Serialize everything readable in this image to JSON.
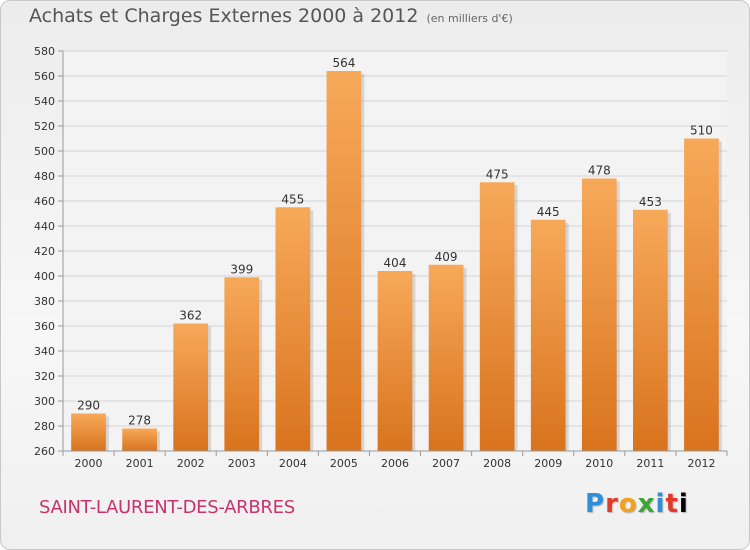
{
  "header": {
    "title": "Achats et Charges Externes 2000 à 2012",
    "unit": "(en milliers d'€)"
  },
  "footer": {
    "commune": "SAINT-LAURENT-DES-ARBRES",
    "logo_letters": [
      "P",
      "r",
      "o",
      "x",
      "i",
      "t",
      "i"
    ]
  },
  "colors": {
    "bar_light": "#f7a95a",
    "bar_dark": "#d9731d",
    "commune": "#c8336e"
  },
  "chart_data": {
    "type": "bar",
    "title": "Achats et Charges Externes 2000 à 2012",
    "subtitle": "(en milliers d'€)",
    "xlabel": "",
    "ylabel": "",
    "categories": [
      "2000",
      "2001",
      "2002",
      "2003",
      "2004",
      "2005",
      "2006",
      "2007",
      "2008",
      "2009",
      "2010",
      "2011",
      "2012"
    ],
    "values": [
      290,
      278,
      362,
      399,
      455,
      564,
      404,
      409,
      475,
      445,
      478,
      453,
      510
    ],
    "ylim": [
      260,
      580
    ],
    "ytick_step": 20,
    "grid": true,
    "legend": "none"
  }
}
